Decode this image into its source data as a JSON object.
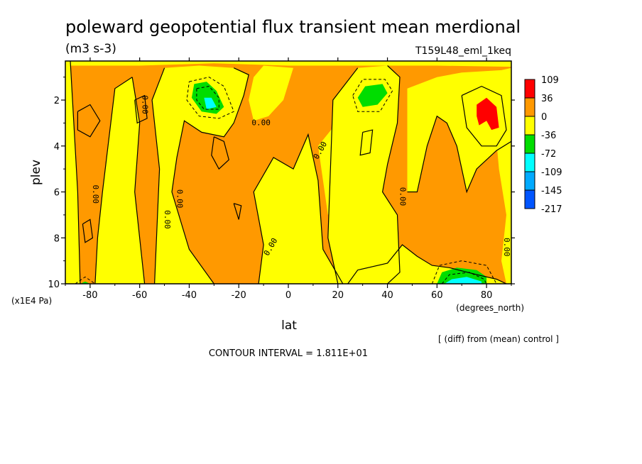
{
  "chart_data": {
    "type": "heatmap",
    "title": "poleward geopotential flux transient mean merdional",
    "units": "(m3 s-3)",
    "experiment": "T159L48_eml_1keq",
    "xlabel": "lat",
    "x_units": "(degrees_north)",
    "ylabel": "plev",
    "y_units": "(x1E4 Pa)",
    "xlim": [
      -90,
      90
    ],
    "ylim": [
      10,
      0.3
    ],
    "x_ticks": [
      -80,
      -60,
      -40,
      -20,
      0,
      20,
      40,
      60,
      80
    ],
    "x_tick_labels": [
      "-80",
      "-60",
      "-40",
      "-20",
      "0",
      "20",
      "40",
      "60",
      "80"
    ],
    "y_ticks": [
      2,
      4,
      6,
      8,
      10
    ],
    "y_tick_labels": [
      "2",
      "4",
      "6",
      "8",
      "10"
    ],
    "colorbar": {
      "levels": [
        "109",
        "36",
        "0",
        "-36",
        "-72",
        "-109",
        "-145",
        "-217"
      ],
      "colors": [
        "#ff0000",
        "#ff9900",
        "#ffff00",
        "#00dd00",
        "#00ffff",
        "#00aaff",
        "#0055ff"
      ]
    },
    "contour_label": "0.00",
    "contour_interval_text": "CONTOUR INTERVAL = 1.811E+01",
    "note": "[ (diff) from (mean) control ]",
    "background_color": "#ff9900",
    "regions": [
      {
        "fill": "#ffff00",
        "points": [
          [
            -90,
            10
          ],
          [
            -84,
            10
          ],
          [
            -85,
            6
          ],
          [
            -88,
            0.3
          ],
          [
            -90,
            0.3
          ]
        ]
      },
      {
        "fill": "#ffff00",
        "points": [
          [
            -75,
            6
          ],
          [
            -70,
            1.5
          ],
          [
            -63,
            1
          ],
          [
            -60,
            3
          ],
          [
            -62,
            6
          ],
          [
            -58,
            10
          ],
          [
            -78,
            10
          ],
          [
            -77,
            8
          ]
        ]
      },
      {
        "fill": "#ffff00",
        "points": [
          [
            -54,
            10
          ],
          [
            -52,
            5
          ],
          [
            -55,
            2
          ],
          [
            -50,
            0.6
          ],
          [
            -36,
            0.5
          ],
          [
            -22,
            0.6
          ],
          [
            -16,
            0.9
          ],
          [
            -18,
            1.8
          ],
          [
            -22,
            3
          ],
          [
            -26,
            3.6
          ],
          [
            -35,
            3.4
          ],
          [
            -42,
            2.9
          ],
          [
            -45,
            4.5
          ],
          [
            -47,
            6
          ],
          [
            -40,
            8.5
          ],
          [
            -30,
            10
          ]
        ]
      },
      {
        "fill": "#ffff00",
        "points": [
          [
            -90,
            0.3
          ],
          [
            90,
            0.3
          ],
          [
            90,
            0.55
          ],
          [
            60,
            0.5
          ],
          [
            30,
            0.5
          ],
          [
            0,
            0.5
          ],
          [
            -30,
            0.4
          ],
          [
            -60,
            0.5
          ],
          [
            -90,
            0.5
          ]
        ]
      },
      {
        "fill": "#ffff00",
        "points": [
          [
            -10,
            0.5
          ],
          [
            2,
            0.6
          ],
          [
            -2,
            2
          ],
          [
            -8,
            2.7
          ],
          [
            -14,
            2.9
          ],
          [
            -16,
            2
          ],
          [
            -14,
            1
          ]
        ]
      },
      {
        "fill": "#ffff00",
        "points": [
          [
            -12,
            10
          ],
          [
            -10,
            8.3
          ],
          [
            -14,
            6
          ],
          [
            -6,
            4.5
          ],
          [
            2,
            5
          ],
          [
            8,
            3.5
          ],
          [
            12,
            5.5
          ],
          [
            14,
            8.5
          ],
          [
            22,
            10
          ]
        ]
      },
      {
        "fill": "#ffff00",
        "points": [
          [
            12,
            4
          ],
          [
            18,
            3.2
          ],
          [
            25,
            4
          ],
          [
            22,
            6
          ],
          [
            16,
            7
          ]
        ]
      },
      {
        "fill": "#ffff00",
        "points": [
          [
            20,
            10
          ],
          [
            16,
            8
          ],
          [
            18,
            2
          ],
          [
            28,
            0.6
          ],
          [
            40,
            0.5
          ],
          [
            45,
            1
          ],
          [
            44,
            3
          ],
          [
            40,
            4.8
          ],
          [
            38,
            6
          ],
          [
            44,
            7
          ],
          [
            45,
            9.5
          ],
          [
            40,
            10
          ]
        ]
      },
      {
        "fill": "#ffff00",
        "points": [
          [
            28,
            9.4
          ],
          [
            40,
            9.1
          ],
          [
            46,
            8.3
          ],
          [
            52,
            8.8
          ],
          [
            58,
            9.2
          ],
          [
            65,
            9.3
          ],
          [
            76,
            9.6
          ],
          [
            84,
            9.8
          ],
          [
            88,
            10
          ],
          [
            24,
            10
          ]
        ]
      },
      {
        "fill": "#ffff00",
        "points": [
          [
            48,
            1.5
          ],
          [
            60,
            1
          ],
          [
            70,
            0.8
          ],
          [
            86,
            0.7
          ],
          [
            90,
            0.6
          ],
          [
            90,
            3.8
          ],
          [
            84,
            4.2
          ],
          [
            76,
            5
          ],
          [
            72,
            6
          ],
          [
            68,
            4
          ],
          [
            64,
            3
          ],
          [
            60,
            2.7
          ],
          [
            56,
            4
          ],
          [
            52,
            6
          ],
          [
            48,
            6
          ]
        ]
      },
      {
        "fill": "#ffff00",
        "points": [
          [
            84,
            3.8
          ],
          [
            90,
            3.6
          ],
          [
            90,
            10
          ],
          [
            88,
            10
          ],
          [
            86,
            9
          ],
          [
            88,
            7
          ],
          [
            85,
            5
          ]
        ]
      },
      {
        "fill": "#00dd00",
        "points": [
          [
            -38,
            1.3
          ],
          [
            -33,
            1.2
          ],
          [
            -29,
            1.6
          ],
          [
            -26,
            2.3
          ],
          [
            -29,
            2.6
          ],
          [
            -35,
            2.5
          ],
          [
            -39,
            1.9
          ]
        ]
      },
      {
        "fill": "#00ffff",
        "points": [
          [
            -34,
            1.9
          ],
          [
            -31,
            1.9
          ],
          [
            -29,
            2.3
          ],
          [
            -33,
            2.4
          ]
        ]
      },
      {
        "fill": "#00dd00",
        "points": [
          [
            28,
            1.9
          ],
          [
            31,
            1.4
          ],
          [
            38,
            1.3
          ],
          [
            40,
            1.7
          ],
          [
            36,
            2.2
          ],
          [
            30,
            2.3
          ]
        ]
      },
      {
        "fill": "#00dd00",
        "points": [
          [
            60,
            10
          ],
          [
            62,
            9.5
          ],
          [
            68,
            9.3
          ],
          [
            76,
            9.4
          ],
          [
            80,
            9.7
          ],
          [
            80,
            10
          ]
        ]
      },
      {
        "fill": "#00ffff",
        "points": [
          [
            63,
            10
          ],
          [
            66,
            9.8
          ],
          [
            72,
            9.7
          ],
          [
            78,
            9.9
          ],
          [
            78,
            10
          ]
        ]
      },
      {
        "fill": "#00dd00",
        "points": [
          [
            -84,
            10
          ],
          [
            -82,
            9.9
          ],
          [
            -80,
            10
          ]
        ]
      },
      {
        "fill": "#ff0000",
        "points": [
          [
            76,
            2.2
          ],
          [
            80,
            1.9
          ],
          [
            84,
            2.3
          ],
          [
            85,
            3.2
          ],
          [
            82,
            3.3
          ],
          [
            80,
            2.9
          ],
          [
            77,
            3.1
          ],
          [
            76,
            2.7
          ]
        ]
      }
    ],
    "contours": [
      [
        [
          -84,
          10
        ],
        [
          -85,
          6
        ],
        [
          -88,
          0.3
        ]
      ],
      [
        [
          -78,
          10
        ],
        [
          -77,
          8
        ],
        [
          -75,
          6
        ],
        [
          -70,
          1.5
        ],
        [
          -63,
          1
        ]
      ],
      [
        [
          -58,
          10
        ],
        [
          -62,
          6
        ],
        [
          -60,
          3
        ],
        [
          -63,
          1
        ]
      ],
      [
        [
          -54,
          10
        ],
        [
          -52,
          5
        ],
        [
          -55,
          2
        ],
        [
          -50,
          0.6
        ]
      ],
      [
        [
          -30,
          10
        ],
        [
          -40,
          8.5
        ],
        [
          -47,
          6
        ],
        [
          -45,
          4.5
        ],
        [
          -42,
          2.9
        ],
        [
          -35,
          3.4
        ],
        [
          -26,
          3.6
        ],
        [
          -22,
          3
        ],
        [
          -18,
          1.8
        ],
        [
          -16,
          0.9
        ],
        [
          -22,
          0.6
        ]
      ],
      [
        [
          -12,
          10
        ],
        [
          -10,
          8.3
        ],
        [
          -14,
          6
        ],
        [
          -6,
          4.5
        ],
        [
          2,
          5
        ],
        [
          8,
          3.5
        ],
        [
          12,
          5.5
        ],
        [
          14,
          8.5
        ],
        [
          22,
          10
        ]
      ],
      [
        [
          20,
          10
        ],
        [
          16,
          8
        ],
        [
          18,
          2
        ],
        [
          28,
          0.6
        ]
      ],
      [
        [
          40,
          10
        ],
        [
          45,
          9.5
        ],
        [
          44,
          7
        ],
        [
          38,
          6
        ],
        [
          40,
          4.8
        ],
        [
          44,
          3
        ],
        [
          45,
          1
        ],
        [
          40,
          0.5
        ]
      ],
      [
        [
          48,
          6
        ],
        [
          52,
          6
        ],
        [
          56,
          4
        ],
        [
          60,
          2.7
        ],
        [
          64,
          3
        ],
        [
          68,
          4
        ],
        [
          72,
          6
        ],
        [
          76,
          5
        ],
        [
          84,
          4.2
        ],
        [
          90,
          3.8
        ]
      ],
      [
        [
          24,
          10
        ],
        [
          28,
          9.4
        ],
        [
          40,
          9.1
        ],
        [
          46,
          8.3
        ],
        [
          52,
          8.8
        ],
        [
          58,
          9.2
        ],
        [
          65,
          9.3
        ],
        [
          76,
          9.6
        ],
        [
          84,
          9.8
        ],
        [
          88,
          10
        ]
      ],
      [
        [
          -85,
          2.5
        ],
        [
          -80,
          2.2
        ],
        [
          -76,
          2.9
        ],
        [
          -80,
          3.6
        ],
        [
          -85,
          3.3
        ],
        [
          -85,
          2.5
        ]
      ],
      [
        [
          -62,
          2
        ],
        [
          -58,
          1.8
        ],
        [
          -57,
          2.8
        ],
        [
          -61,
          3
        ],
        [
          -62,
          2
        ]
      ],
      [
        [
          -30,
          3.6
        ],
        [
          -26,
          3.8
        ],
        [
          -24,
          4.6
        ],
        [
          -28,
          5
        ],
        [
          -31,
          4.4
        ],
        [
          -30,
          3.6
        ]
      ],
      [
        [
          -83,
          7.4
        ],
        [
          -80,
          7.2
        ],
        [
          -79,
          8
        ],
        [
          -82,
          8.2
        ],
        [
          -83,
          7.4
        ]
      ],
      [
        [
          70,
          1.8
        ],
        [
          78,
          1.4
        ],
        [
          86,
          1.8
        ],
        [
          88,
          3.3
        ],
        [
          84,
          4
        ],
        [
          78,
          4
        ],
        [
          72,
          3.2
        ],
        [
          70,
          1.8
        ]
      ],
      [
        [
          30,
          3.4
        ],
        [
          34,
          3.3
        ],
        [
          33,
          4.3
        ],
        [
          29,
          4.4
        ],
        [
          30,
          3.4
        ]
      ],
      [
        [
          -22,
          6.5
        ],
        [
          -19,
          6.6
        ],
        [
          -20,
          7.2
        ],
        [
          -22,
          6.5
        ]
      ]
    ],
    "dashed_contours": [
      [
        [
          -40,
          1.2
        ],
        [
          -32,
          1
        ],
        [
          -26,
          1.4
        ],
        [
          -22,
          2.5
        ],
        [
          -28,
          2.8
        ],
        [
          -36,
          2.7
        ],
        [
          -41,
          2
        ],
        [
          -40,
          1.2
        ]
      ],
      [
        [
          -37,
          1.5
        ],
        [
          -32,
          1.4
        ],
        [
          -28,
          1.9
        ],
        [
          -28,
          2.4
        ],
        [
          -34,
          2.4
        ],
        [
          -37,
          2
        ],
        [
          -37,
          1.5
        ]
      ],
      [
        [
          26,
          1.8
        ],
        [
          30,
          1.1
        ],
        [
          39,
          1.1
        ],
        [
          42,
          1.6
        ],
        [
          37,
          2.5
        ],
        [
          28,
          2.5
        ],
        [
          26,
          1.8
        ]
      ],
      [
        [
          58,
          10
        ],
        [
          61,
          9.2
        ],
        [
          70,
          9
        ],
        [
          80,
          9.2
        ],
        [
          84,
          10
        ]
      ],
      [
        [
          62,
          10
        ],
        [
          65,
          9.6
        ],
        [
          73,
          9.5
        ],
        [
          79,
          9.8
        ],
        [
          80,
          10
        ]
      ],
      [
        [
          -86,
          10
        ],
        [
          -82,
          9.7
        ],
        [
          -78,
          10
        ]
      ]
    ],
    "contour_labels": [
      {
        "x": -58,
        "y": 2.2,
        "text": "0.00",
        "rotate": 90
      },
      {
        "x": -78,
        "y": 6.1,
        "text": "0.00",
        "rotate": 90
      },
      {
        "x": -49,
        "y": 7.2,
        "text": "0.00",
        "rotate": 90
      },
      {
        "x": -44,
        "y": 6.3,
        "text": "0.00",
        "rotate": 90
      },
      {
        "x": -11,
        "y": 3.0,
        "text": "0.00",
        "rotate": 0
      },
      {
        "x": 13,
        "y": 4.2,
        "text": "0.00",
        "rotate": -60
      },
      {
        "x": -7,
        "y": 8.4,
        "text": "0.00",
        "rotate": -60
      },
      {
        "x": 46,
        "y": 6.2,
        "text": "0.00",
        "rotate": 90
      },
      {
        "x": 88,
        "y": 8.4,
        "text": "0.00",
        "rotate": 90
      }
    ]
  }
}
